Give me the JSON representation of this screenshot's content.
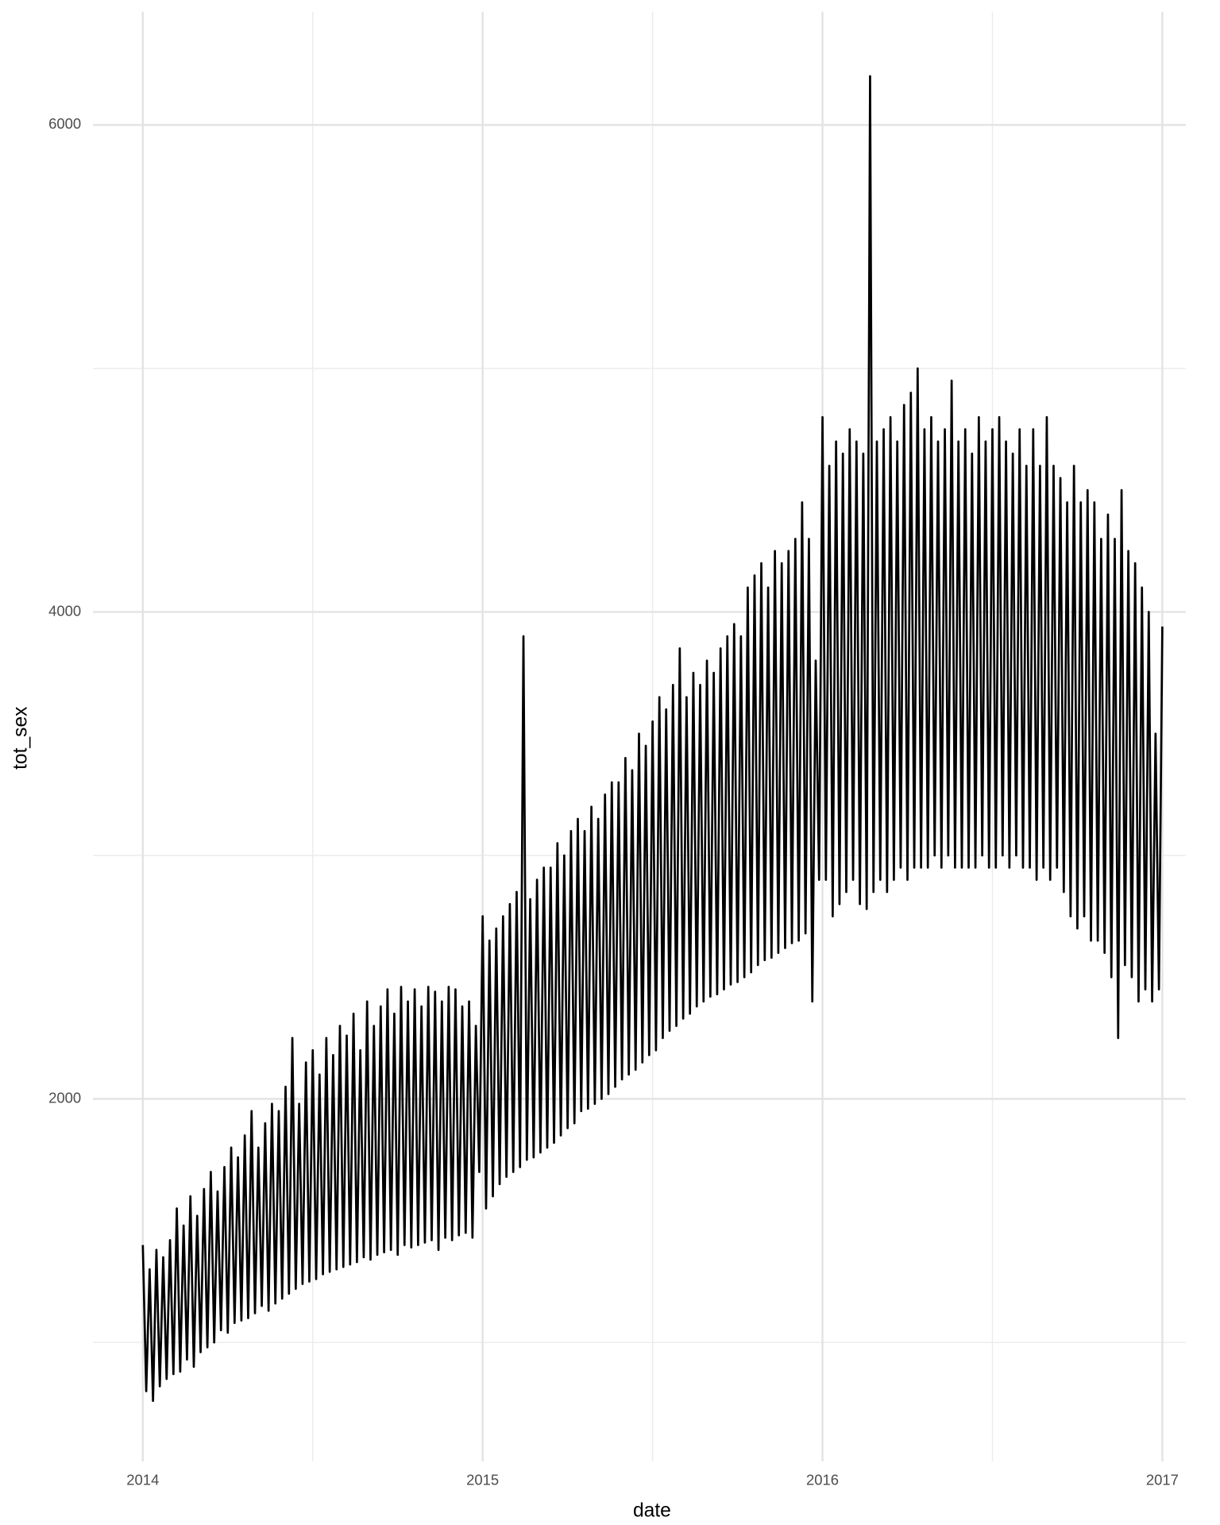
{
  "chart_data": {
    "type": "line",
    "x_label": "date",
    "y_label": "tot_sex",
    "color": "#000000",
    "grid": true,
    "xlim": [
      2013.853,
      2017.069
    ],
    "xticks": [
      2014,
      2015,
      2016,
      2017
    ],
    "xminor": [
      2014.5,
      2015.5,
      2016.5
    ],
    "ylim": [
      511,
      6465
    ],
    "yticks": [
      2000,
      4000,
      6000
    ],
    "yminor": [
      1000,
      3000,
      5000
    ],
    "x": [
      2014,
      2014.01,
      2014.02,
      2014.03,
      2014.04,
      2014.05,
      2014.06,
      2014.07,
      2014.08,
      2014.09,
      2014.1,
      2014.11,
      2014.12,
      2014.13,
      2014.14,
      2014.15,
      2014.16,
      2014.17,
      2014.18,
      2014.19,
      2014.2,
      2014.21,
      2014.22,
      2014.23,
      2014.24,
      2014.25,
      2014.26,
      2014.27,
      2014.28,
      2014.29,
      2014.3,
      2014.31,
      2014.32,
      2014.33,
      2014.34,
      2014.35,
      2014.36,
      2014.37,
      2014.38,
      2014.39,
      2014.4,
      2014.41,
      2014.42,
      2014.43,
      2014.44,
      2014.45,
      2014.46,
      2014.47,
      2014.48,
      2014.49,
      2014.5,
      2014.51,
      2014.52,
      2014.53,
      2014.54,
      2014.55,
      2014.56,
      2014.57,
      2014.58,
      2014.59,
      2014.6,
      2014.61,
      2014.62,
      2014.63,
      2014.64,
      2014.65,
      2014.66,
      2014.67,
      2014.68,
      2014.69,
      2014.7,
      2014.71,
      2014.72,
      2014.73,
      2014.74,
      2014.75,
      2014.76,
      2014.77,
      2014.78,
      2014.79,
      2014.8,
      2014.81,
      2014.82,
      2014.83,
      2014.84,
      2014.85,
      2014.86,
      2014.87,
      2014.88,
      2014.89,
      2014.9,
      2014.91,
      2014.92,
      2014.93,
      2014.94,
      2014.95,
      2014.96,
      2014.97,
      2014.98,
      2014.99,
      2015,
      2015.01,
      2015.02,
      2015.03,
      2015.04,
      2015.05,
      2015.06,
      2015.07,
      2015.08,
      2015.09,
      2015.1,
      2015.11,
      2015.12,
      2015.13,
      2015.14,
      2015.15,
      2015.16,
      2015.17,
      2015.18,
      2015.19,
      2015.2,
      2015.21,
      2015.22,
      2015.23,
      2015.24,
      2015.25,
      2015.26,
      2015.27,
      2015.28,
      2015.29,
      2015.3,
      2015.31,
      2015.32,
      2015.33,
      2015.34,
      2015.35,
      2015.36,
      2015.37,
      2015.38,
      2015.39,
      2015.4,
      2015.41,
      2015.42,
      2015.43,
      2015.44,
      2015.45,
      2015.46,
      2015.47,
      2015.48,
      2015.49,
      2015.5,
      2015.51,
      2015.52,
      2015.53,
      2015.54,
      2015.55,
      2015.56,
      2015.57,
      2015.58,
      2015.59,
      2015.6,
      2015.61,
      2015.62,
      2015.63,
      2015.64,
      2015.65,
      2015.66,
      2015.67,
      2015.68,
      2015.69,
      2015.7,
      2015.71,
      2015.72,
      2015.73,
      2015.74,
      2015.75,
      2015.76,
      2015.77,
      2015.78,
      2015.79,
      2015.8,
      2015.81,
      2015.82,
      2015.83,
      2015.84,
      2015.85,
      2015.86,
      2015.87,
      2015.88,
      2015.89,
      2015.9,
      2015.91,
      2015.92,
      2015.93,
      2015.94,
      2015.95,
      2015.96,
      2015.97,
      2015.98,
      2015.99,
      2016,
      2016.01,
      2016.02,
      2016.03,
      2016.04,
      2016.05,
      2016.06,
      2016.07,
      2016.08,
      2016.09,
      2016.1,
      2016.11,
      2016.12,
      2016.13,
      2016.14,
      2016.15,
      2016.16,
      2016.17,
      2016.18,
      2016.19,
      2016.2,
      2016.21,
      2016.22,
      2016.23,
      2016.24,
      2016.25,
      2016.26,
      2016.27,
      2016.28,
      2016.29,
      2016.3,
      2016.31,
      2016.32,
      2016.33,
      2016.34,
      2016.35,
      2016.36,
      2016.37,
      2016.38,
      2016.39,
      2016.4,
      2016.41,
      2016.42,
      2016.43,
      2016.44,
      2016.45,
      2016.46,
      2016.47,
      2016.48,
      2016.49,
      2016.5,
      2016.51,
      2016.52,
      2016.53,
      2016.54,
      2016.55,
      2016.56,
      2016.57,
      2016.58,
      2016.59,
      2016.6,
      2016.61,
      2016.62,
      2016.63,
      2016.64,
      2016.65,
      2016.66,
      2016.67,
      2016.68,
      2016.69,
      2016.7,
      2016.71,
      2016.72,
      2016.73,
      2016.74,
      2016.75,
      2016.76,
      2016.77,
      2016.78,
      2016.79,
      2016.8,
      2016.81,
      2016.82,
      2016.83,
      2016.84,
      2016.85,
      2016.86,
      2016.87,
      2016.88,
      2016.89,
      2016.9,
      2016.91,
      2016.92,
      2016.93,
      2016.94,
      2016.95,
      2016.96,
      2016.97,
      2016.98,
      2016.99,
      2017
    ],
    "values": [
      1400,
      800,
      1300,
      760,
      1380,
      820,
      1350,
      850,
      1420,
      870,
      1550,
      880,
      1480,
      930,
      1600,
      900,
      1520,
      960,
      1630,
      980,
      1700,
      1000,
      1620,
      1050,
      1720,
      1040,
      1800,
      1080,
      1760,
      1090,
      1850,
      1100,
      1950,
      1120,
      1800,
      1150,
      1900,
      1130,
      1980,
      1160,
      1950,
      1180,
      2050,
      1200,
      2250,
      1220,
      1980,
      1240,
      2150,
      1250,
      2200,
      1260,
      2100,
      1280,
      2250,
      1290,
      2180,
      1300,
      2300,
      1310,
      2260,
      1320,
      2350,
      1330,
      2200,
      1350,
      2400,
      1340,
      2300,
      1360,
      2380,
      1370,
      2450,
      1380,
      2350,
      1360,
      2460,
      1400,
      2400,
      1390,
      2450,
      1400,
      2380,
      1410,
      2460,
      1420,
      2440,
      1380,
      2400,
      1430,
      2460,
      1420,
      2450,
      1440,
      2380,
      1450,
      2400,
      1430,
      2300,
      1700,
      2750,
      1550,
      2650,
      1600,
      2700,
      1650,
      2750,
      1680,
      2800,
      1700,
      2850,
      1720,
      3900,
      1750,
      2820,
      1760,
      2900,
      1780,
      2950,
      1800,
      2950,
      1820,
      3050,
      1850,
      3000,
      1880,
      3100,
      1900,
      3150,
      1950,
      3100,
      1960,
      3200,
      1980,
      3150,
      2000,
      3250,
      2020,
      3300,
      2050,
      3300,
      2080,
      3400,
      2100,
      3350,
      2120,
      3500,
      2150,
      3450,
      2180,
      3550,
      2200,
      3650,
      2250,
      3600,
      2280,
      3700,
      2300,
      3850,
      2330,
      3650,
      2350,
      3750,
      2380,
      3700,
      2400,
      3800,
      2420,
      3750,
      2430,
      3850,
      2450,
      3900,
      2470,
      3950,
      2480,
      3900,
      2500,
      4100,
      2520,
      4150,
      2550,
      4200,
      2570,
      4100,
      2580,
      4250,
      2600,
      4200,
      2620,
      4250,
      2640,
      4300,
      2650,
      4450,
      2680,
      4300,
      2400,
      3800,
      2900,
      4800,
      2900,
      4600,
      2750,
      4700,
      2800,
      4650,
      2850,
      4750,
      2900,
      4700,
      2800,
      4650,
      2780,
      6200,
      2850,
      4700,
      2900,
      4750,
      2850,
      4800,
      2900,
      4700,
      2950,
      4850,
      2900,
      4900,
      2950,
      5000,
      2950,
      4750,
      2950,
      4800,
      3000,
      4700,
      2950,
      4750,
      3000,
      4950,
      2950,
      4700,
      2950,
      4750,
      2950,
      4650,
      2950,
      4800,
      3000,
      4700,
      2950,
      4750,
      2950,
      4800,
      3000,
      4700,
      2950,
      4650,
      3000,
      4750,
      2950,
      4600,
      2950,
      4750,
      2900,
      4600,
      2950,
      4800,
      2900,
      4600,
      2950,
      4550,
      2850,
      4450,
      2750,
      4600,
      2700,
      4450,
      2750,
      4500,
      2650,
      4450,
      2650,
      4300,
      2600,
      4400,
      2500,
      4300,
      2250,
      4500,
      2550,
      4250,
      2500,
      4200,
      2400,
      4100,
      2450,
      4000,
      2400,
      3500,
      2450,
      3940
    ]
  }
}
